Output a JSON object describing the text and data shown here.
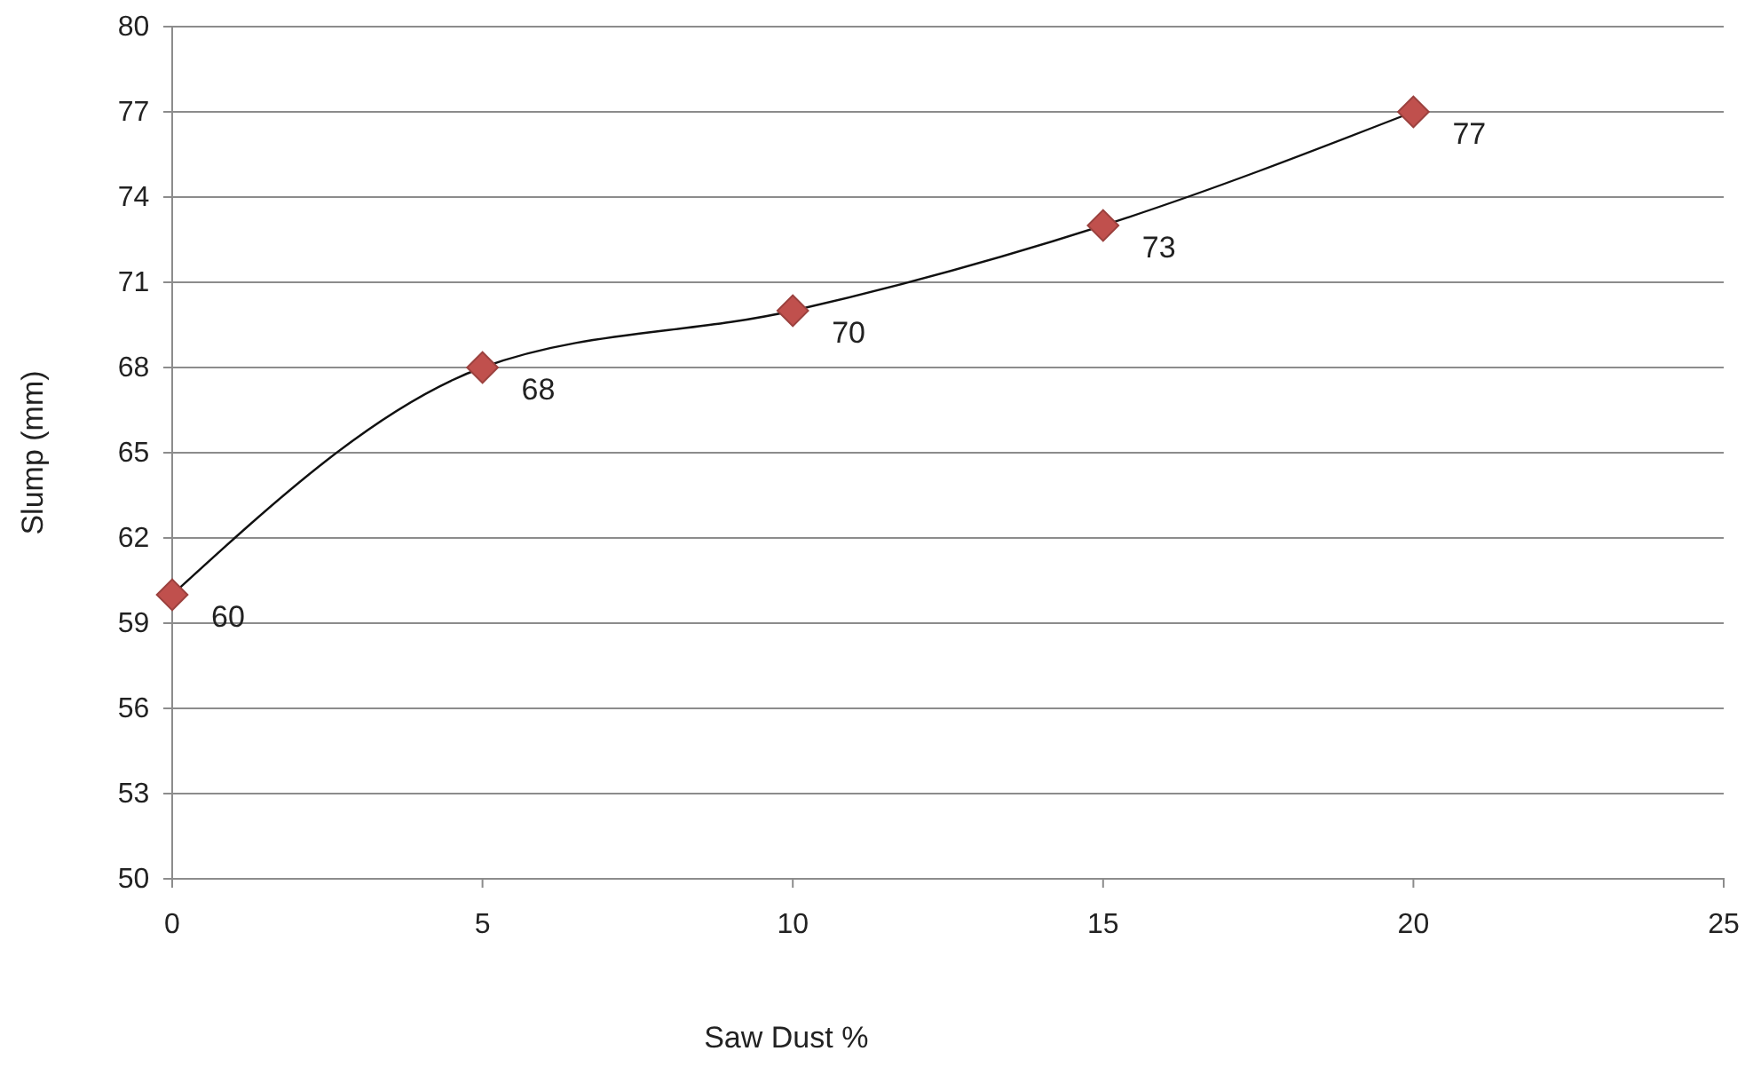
{
  "chart_data": {
    "type": "line",
    "xlabel": "Saw Dust %",
    "ylabel": "Slump (mm)",
    "x": [
      0,
      5,
      10,
      15,
      20
    ],
    "series": [
      {
        "color": "#c0504d",
        "values": [
          60,
          68,
          70,
          73,
          77
        ]
      }
    ],
    "xlim": [
      0,
      25
    ],
    "xticks": [
      0,
      5,
      10,
      15,
      20,
      25
    ],
    "ylim": [
      50,
      80
    ],
    "yticks": [
      50,
      53,
      56,
      59,
      62,
      65,
      68,
      71,
      74,
      77,
      80
    ],
    "grid": "y",
    "marker": "diamond",
    "line_style": "solid",
    "data_labels": true
  }
}
